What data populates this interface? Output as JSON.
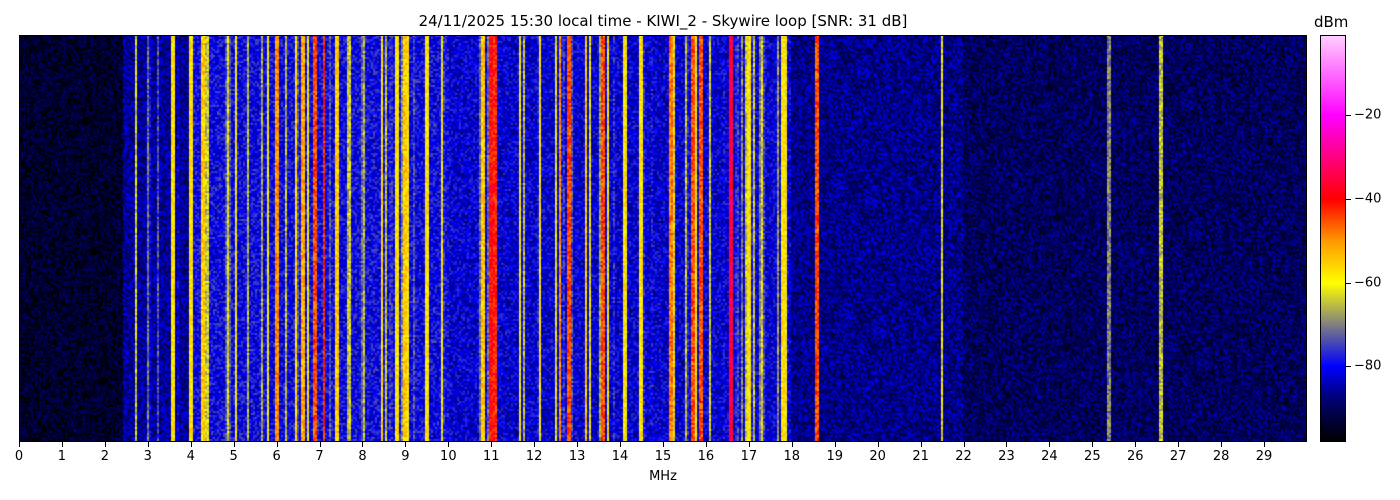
{
  "chart_data": {
    "type": "heatmap",
    "title": "24/11/2025 15:30 local time - KIWI_2 - Skywire loop [SNR: 31 dB]",
    "xlabel": "MHz",
    "ylabel": "",
    "xlim": [
      0,
      30
    ],
    "xticks": [
      "0",
      "1",
      "2",
      "3",
      "4",
      "5",
      "6",
      "7",
      "8",
      "9",
      "10",
      "11",
      "12",
      "13",
      "14",
      "15",
      "16",
      "17",
      "18",
      "19",
      "20",
      "21",
      "22",
      "23",
      "24",
      "25",
      "26",
      "27",
      "28",
      "29"
    ],
    "colorbar": {
      "label": "dBm",
      "range": [
        -98,
        -1
      ],
      "ticks": [
        "−20",
        "−40",
        "−60",
        "−80"
      ],
      "tick_values": [
        -20,
        -40,
        -60,
        -80
      ],
      "colormap_stops": [
        {
          "value": -98,
          "color": "#000000"
        },
        {
          "value": -88,
          "color": "#000070"
        },
        {
          "value": -80,
          "color": "#0000ff"
        },
        {
          "value": -70,
          "color": "#808080"
        },
        {
          "value": -60,
          "color": "#ffff00"
        },
        {
          "value": -50,
          "color": "#ff9900"
        },
        {
          "value": -40,
          "color": "#ff0000"
        },
        {
          "value": -20,
          "color": "#ff00ff"
        },
        {
          "value": -1,
          "color": "#ffccff"
        }
      ]
    },
    "noise_floor_by_band": [
      {
        "from_mhz": 0,
        "to_mhz": 2.4,
        "dbm": -94
      },
      {
        "from_mhz": 2.4,
        "to_mhz": 4,
        "dbm": -86
      },
      {
        "from_mhz": 4,
        "to_mhz": 10,
        "dbm": -80
      },
      {
        "from_mhz": 10,
        "to_mhz": 18,
        "dbm": -82
      },
      {
        "from_mhz": 18,
        "to_mhz": 22,
        "dbm": -87
      },
      {
        "from_mhz": 22,
        "to_mhz": 30,
        "dbm": -90
      }
    ],
    "strong_signals": [
      {
        "mhz": 3.6,
        "dbm": -58
      },
      {
        "mhz": 4.0,
        "dbm": -58
      },
      {
        "mhz": 4.3,
        "dbm": -55
      },
      {
        "mhz": 5.8,
        "dbm": -60
      },
      {
        "mhz": 6.0,
        "dbm": -50
      },
      {
        "mhz": 6.6,
        "dbm": -52
      },
      {
        "mhz": 6.9,
        "dbm": -45
      },
      {
        "mhz": 7.1,
        "dbm": -42
      },
      {
        "mhz": 7.4,
        "dbm": -55
      },
      {
        "mhz": 8.8,
        "dbm": -58
      },
      {
        "mhz": 9.0,
        "dbm": -55
      },
      {
        "mhz": 9.5,
        "dbm": -58
      },
      {
        "mhz": 10.8,
        "dbm": -55
      },
      {
        "mhz": 11.0,
        "dbm": -40
      },
      {
        "mhz": 11.1,
        "dbm": -42
      },
      {
        "mhz": 12.6,
        "dbm": -50
      },
      {
        "mhz": 12.8,
        "dbm": -45
      },
      {
        "mhz": 13.2,
        "dbm": -55
      },
      {
        "mhz": 13.6,
        "dbm": -45
      },
      {
        "mhz": 14.1,
        "dbm": -58
      },
      {
        "mhz": 14.5,
        "dbm": -58
      },
      {
        "mhz": 15.2,
        "dbm": -48
      },
      {
        "mhz": 15.7,
        "dbm": -45
      },
      {
        "mhz": 15.9,
        "dbm": -45
      },
      {
        "mhz": 16.6,
        "dbm": -35
      },
      {
        "mhz": 17.0,
        "dbm": -58
      },
      {
        "mhz": 17.8,
        "dbm": -58
      },
      {
        "mhz": 18.6,
        "dbm": -45
      },
      {
        "mhz": 21.5,
        "dbm": -62
      },
      {
        "mhz": 25.4,
        "dbm": -70
      },
      {
        "mhz": 26.6,
        "dbm": -65
      }
    ]
  }
}
